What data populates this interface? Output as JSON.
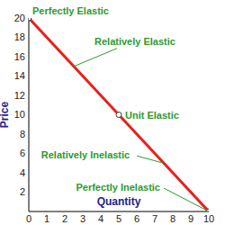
{
  "chart_data": {
    "type": "line",
    "x": [
      0,
      5,
      10
    ],
    "values": [
      20,
      10,
      0
    ],
    "color": "#e8201a",
    "marker": "circle",
    "x_label": "Quantity",
    "y_label": "Price",
    "xlim": [
      0,
      10
    ],
    "ylim": [
      0,
      20
    ],
    "xticks": [
      0,
      1,
      2,
      3,
      4,
      5,
      6,
      7,
      8,
      9,
      10
    ],
    "yticks": [
      2,
      4,
      6,
      8,
      10,
      12,
      14,
      16,
      18,
      20
    ],
    "grid": false,
    "annotations": [
      {
        "text": "Perfectly Elastic",
        "x": 0,
        "y": 20
      },
      {
        "text": "Relatively Elastic",
        "x": 2.5,
        "y": 15
      },
      {
        "text": "Unit Elastic",
        "x": 5,
        "y": 10
      },
      {
        "text": "Relatively Inelastic",
        "x": 7.5,
        "y": 5
      },
      {
        "text": "Perfectly Inelastic",
        "x": 10,
        "y": 0
      }
    ]
  }
}
